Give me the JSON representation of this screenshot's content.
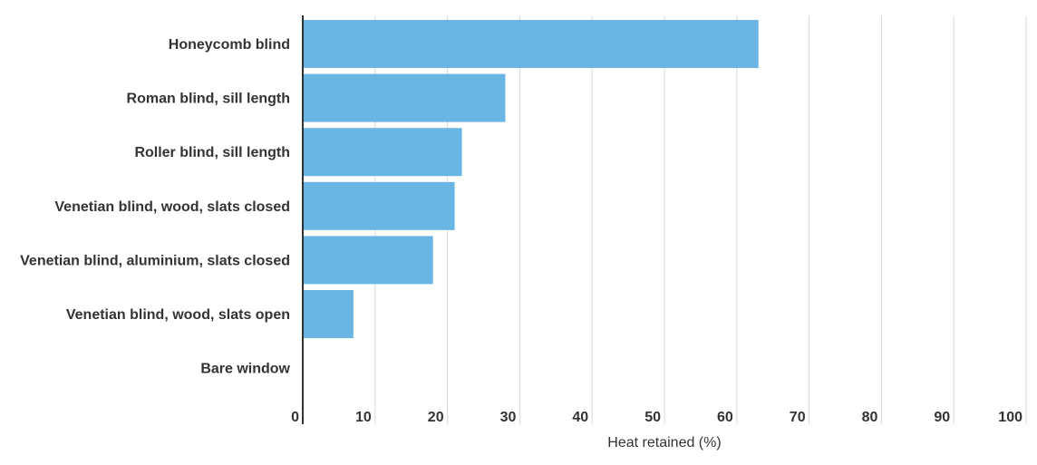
{
  "chart_data": {
    "type": "bar",
    "orientation": "horizontal",
    "categories": [
      "Honeycomb blind",
      "Roman blind, sill length",
      "Roller blind, sill length",
      "Venetian blind, wood, slats closed",
      "Venetian blind, aluminium, slats closed",
      "Venetian blind, wood, slats open",
      "Bare window"
    ],
    "values": [
      63,
      28,
      22,
      21,
      18,
      7,
      0
    ],
    "xlabel": "Heat retained (%)",
    "ylabel": "",
    "xlim": [
      0,
      100
    ],
    "xticks": [
      "0",
      "10",
      "20",
      "30",
      "40",
      "50",
      "60",
      "70",
      "80",
      "90",
      "100"
    ],
    "bar_color": "#69b6e4",
    "grid": "vertical",
    "legend": "none"
  }
}
